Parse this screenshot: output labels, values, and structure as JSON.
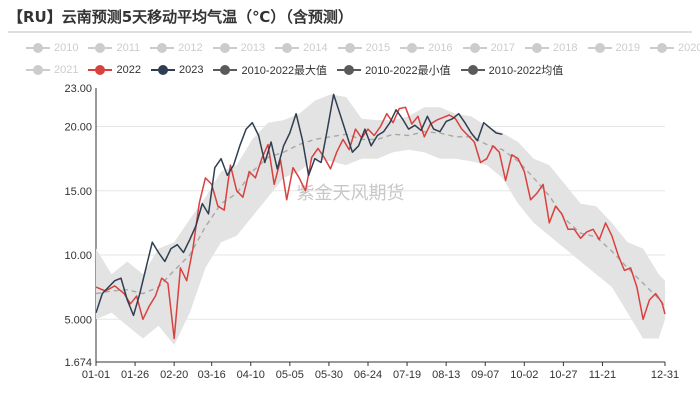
{
  "chart_data": {
    "type": "line",
    "title": "【RU】云南预测5天移动平均气温（℃）（含预测）",
    "watermark": "紫金天风期货",
    "ylim": [
      1.674,
      23.0
    ],
    "y_ticks": [
      "23.00",
      "20.00",
      "15.00",
      "10.00",
      "5.000",
      "1.674"
    ],
    "y_tick_values": [
      23.0,
      20.0,
      15.0,
      10.0,
      5.0,
      1.674
    ],
    "x_tick_labels": [
      "01-01",
      "01-26",
      "02-20",
      "03-16",
      "04-10",
      "05-05",
      "05-30",
      "06-24",
      "07-19",
      "08-13",
      "09-07",
      "10-02",
      "10-27",
      "11-21",
      "12-31"
    ],
    "x_tick_days": [
      0,
      25,
      50,
      74,
      99,
      124,
      149,
      174,
      199,
      224,
      249,
      274,
      299,
      324,
      364
    ],
    "legend_row1": [
      {
        "name": "2010",
        "color": "#cccccc"
      },
      {
        "name": "2011",
        "color": "#cccccc"
      },
      {
        "name": "2012",
        "color": "#cccccc"
      },
      {
        "name": "2013",
        "color": "#cccccc"
      },
      {
        "name": "2014",
        "color": "#cccccc"
      },
      {
        "name": "2015",
        "color": "#cccccc"
      },
      {
        "name": "2016",
        "color": "#cccccc"
      },
      {
        "name": "2017",
        "color": "#cccccc"
      },
      {
        "name": "2018",
        "color": "#cccccc"
      },
      {
        "name": "2019",
        "color": "#cccccc"
      },
      {
        "name": "2020",
        "color": "#cccccc"
      }
    ],
    "legend_row2": [
      {
        "name": "2021",
        "color": "#cccccc"
      },
      {
        "name": "2022",
        "color": "#d9413f"
      },
      {
        "name": "2023",
        "color": "#2f3e51"
      },
      {
        "name": "2010-2022最大值",
        "color": "#5a5a5a"
      },
      {
        "name": "2010-2022最小值",
        "color": "#5a5a5a"
      },
      {
        "name": "2010-2022均值",
        "color": "#5a5a5a"
      }
    ],
    "series": [
      {
        "name": "2010-2022最大值",
        "color": "#e0e0e0",
        "x": [
          0,
          10,
          20,
          30,
          40,
          50,
          60,
          70,
          80,
          90,
          100,
          110,
          120,
          130,
          140,
          150,
          160,
          170,
          180,
          190,
          200,
          210,
          220,
          230,
          240,
          250,
          260,
          270,
          280,
          290,
          300,
          310,
          320,
          330,
          340,
          350,
          360,
          364
        ],
        "values": [
          10.5,
          8.5,
          9.5,
          8.5,
          10.5,
          11.0,
          12.8,
          14.5,
          16.5,
          17.0,
          19.0,
          20.3,
          20.5,
          21.0,
          22.0,
          22.5,
          22.3,
          20.6,
          20.5,
          20.5,
          20.8,
          21.5,
          21.5,
          21.0,
          20.8,
          20.0,
          19.5,
          18.8,
          17.5,
          17.0,
          15.5,
          14.0,
          13.8,
          12.5,
          11.0,
          10.5,
          8.5,
          8.0
        ]
      },
      {
        "name": "2010-2022最小值",
        "color": "#e0e0e0",
        "x": [
          0,
          10,
          20,
          30,
          40,
          50,
          60,
          70,
          80,
          90,
          100,
          110,
          120,
          130,
          140,
          150,
          160,
          170,
          180,
          190,
          200,
          210,
          220,
          230,
          240,
          250,
          260,
          270,
          280,
          290,
          300,
          310,
          320,
          330,
          340,
          350,
          360,
          364
        ],
        "values": [
          5.0,
          5.5,
          4.5,
          3.5,
          4.5,
          3.0,
          5.5,
          9.0,
          11.0,
          11.5,
          13.0,
          14.5,
          16.0,
          16.5,
          17.5,
          17.3,
          17.0,
          17.5,
          17.5,
          18.0,
          18.2,
          18.0,
          17.5,
          17.5,
          17.3,
          17.0,
          16.0,
          14.0,
          12.5,
          11.5,
          10.5,
          9.5,
          8.5,
          7.5,
          5.5,
          3.5,
          3.5,
          5.0
        ]
      },
      {
        "name": "2010-2022均值",
        "color": "#a8a8a8",
        "x": [
          0,
          10,
          20,
          30,
          40,
          50,
          60,
          70,
          80,
          90,
          100,
          110,
          120,
          130,
          140,
          150,
          160,
          170,
          180,
          190,
          200,
          210,
          220,
          230,
          240,
          250,
          260,
          270,
          280,
          290,
          300,
          310,
          320,
          330,
          340,
          350,
          360,
          364
        ],
        "values": [
          7.0,
          7.2,
          7.3,
          7.0,
          7.5,
          8.8,
          10.0,
          12.2,
          14.0,
          14.8,
          16.5,
          17.6,
          18.0,
          18.6,
          19.0,
          19.2,
          19.4,
          19.0,
          19.0,
          19.4,
          19.3,
          19.6,
          19.5,
          19.2,
          19.2,
          18.6,
          18.2,
          17.3,
          16.0,
          14.6,
          12.8,
          11.7,
          11.4,
          10.3,
          9.0,
          7.8,
          6.6,
          6.0
        ]
      },
      {
        "name": "2022",
        "color": "#d9413f",
        "x": [
          0,
          6,
          12,
          18,
          22,
          26,
          30,
          34,
          38,
          42,
          46,
          50,
          54,
          58,
          62,
          66,
          70,
          74,
          78,
          82,
          86,
          90,
          94,
          98,
          102,
          106,
          110,
          114,
          118,
          122,
          126,
          130,
          134,
          138,
          142,
          146,
          150,
          154,
          158,
          162,
          166,
          170,
          174,
          178,
          182,
          186,
          190,
          194,
          198,
          202,
          206,
          210,
          214,
          218,
          222,
          226,
          230,
          234,
          238,
          242,
          246,
          250,
          254,
          258,
          262,
          266,
          270,
          274,
          278,
          282,
          286,
          290,
          294,
          298,
          302,
          306,
          310,
          314,
          318,
          322,
          326,
          330,
          334,
          338,
          342,
          346,
          350,
          354,
          358,
          362,
          364
        ],
        "values": [
          7.5,
          7.2,
          7.6,
          7.0,
          6.2,
          6.8,
          5.0,
          6.0,
          6.8,
          8.2,
          7.8,
          3.5,
          9.0,
          8.0,
          10.5,
          14.0,
          16.0,
          15.5,
          13.8,
          13.5,
          17.0,
          15.0,
          14.5,
          16.5,
          16.0,
          17.5,
          18.6,
          15.5,
          17.4,
          14.3,
          16.8,
          16.0,
          15.0,
          17.6,
          18.3,
          17.6,
          16.7,
          18.0,
          19.0,
          18.2,
          19.8,
          19.1,
          19.8,
          19.3,
          20.0,
          21.0,
          20.3,
          21.4,
          21.5,
          20.2,
          20.8,
          19.2,
          20.2,
          20.5,
          20.7,
          20.9,
          20.6,
          19.8,
          19.3,
          18.8,
          17.2,
          17.5,
          18.5,
          18.0,
          15.8,
          17.8,
          17.5,
          16.5,
          14.3,
          14.8,
          15.5,
          12.5,
          13.8,
          13.2,
          12.0,
          12.0,
          11.3,
          11.8,
          12.0,
          11.2,
          12.5,
          11.5,
          10.0,
          8.8,
          9.0,
          7.5,
          5.0,
          6.5,
          7.0,
          6.3,
          5.4
        ]
      },
      {
        "name": "2023",
        "color": "#2f3e51",
        "x": [
          0,
          4,
          8,
          12,
          16,
          20,
          24,
          28,
          32,
          36,
          40,
          44,
          48,
          52,
          56,
          60,
          64,
          68,
          72,
          76,
          80,
          84,
          88,
          92,
          96,
          100,
          104,
          108,
          112,
          116,
          120,
          124,
          128,
          132,
          136,
          140,
          144,
          148,
          152,
          156,
          160,
          164,
          168,
          172,
          176,
          180,
          184,
          188,
          192,
          196,
          200,
          204,
          208,
          212,
          216,
          220,
          224,
          228,
          232,
          236,
          240,
          244,
          248,
          252,
          256,
          260
        ],
        "values": [
          5.5,
          7.0,
          7.5,
          8.0,
          8.2,
          6.5,
          5.3,
          7.0,
          9.0,
          11.0,
          10.2,
          9.5,
          10.5,
          10.8,
          10.2,
          11.2,
          12.3,
          14.0,
          13.2,
          16.8,
          17.5,
          16.2,
          17.0,
          18.5,
          19.8,
          20.3,
          19.3,
          17.2,
          18.8,
          16.7,
          18.5,
          19.5,
          21.0,
          19.0,
          16.2,
          17.5,
          17.2,
          19.8,
          22.5,
          21.0,
          19.5,
          18.0,
          18.5,
          19.8,
          18.5,
          19.3,
          19.6,
          20.3,
          21.3,
          20.6,
          19.8,
          20.1,
          19.7,
          20.8,
          19.8,
          19.6,
          20.4,
          20.6,
          21.0,
          20.3,
          19.5,
          18.9,
          20.3,
          19.9,
          19.5,
          19.4
        ]
      }
    ]
  }
}
